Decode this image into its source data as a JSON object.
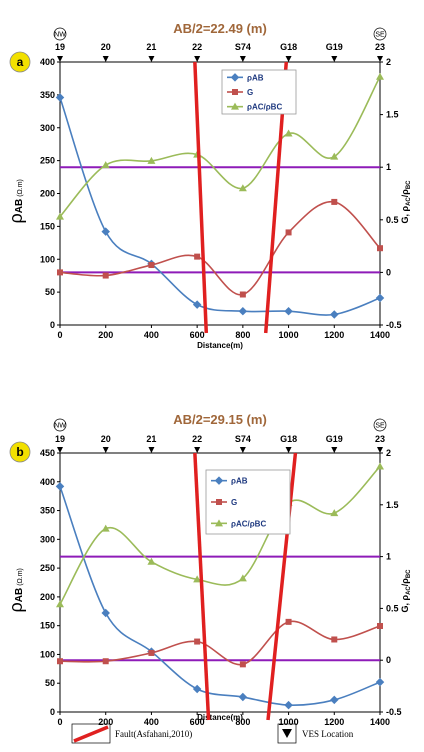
{
  "legend_bottom": {
    "fault": "Fault(Asfahani,2010)",
    "ves": "VES Location"
  },
  "colors": {
    "pab": "#4a7fbf",
    "g": "#c0504d",
    "prat": "#9bbb59",
    "fault": "#e02020",
    "hline": "#8e1bb8",
    "title": "#a0673a",
    "panel": "#f2e000"
  },
  "chart_data": [
    {
      "type": "line",
      "panel": "a",
      "title": "AB/2=22.49 (m)",
      "xlabel": "Distance(m)",
      "ylabel": "ρ",
      "ylabel_sub": "AB",
      "ylabel_unit": "(Ω.m)",
      "y2label": "G, ρAC/ρBC",
      "y2label_parts": [
        "G, ρ",
        "AC",
        "/ρ",
        "BC"
      ],
      "x": [
        0,
        200,
        400,
        600,
        800,
        1000,
        1200,
        1400
      ],
      "xlim": [
        0,
        1400
      ],
      "ylim": [
        0,
        400
      ],
      "yticks": [
        0,
        50,
        100,
        150,
        200,
        250,
        300,
        350,
        400
      ],
      "y2lim": [
        -0.5,
        2
      ],
      "y2ticks": [
        "-0.5",
        "0",
        "0.5",
        "1",
        "1.5",
        "2"
      ],
      "ves_labels": [
        "19",
        "20",
        "21",
        "22",
        "S74",
        "G18",
        "G19",
        "23"
      ],
      "dir_left": "NW",
      "dir_right": "SE",
      "legend": [
        "ρAB",
        "G",
        "ρAC/ρBC"
      ],
      "series": [
        {
          "name": "ρAB",
          "axis": "left",
          "values": [
            346,
            142,
            93,
            31,
            21,
            21,
            16,
            41
          ]
        },
        {
          "name": "G",
          "axis": "right",
          "values": [
            0.0,
            -0.03,
            0.07,
            0.15,
            -0.21,
            0.38,
            0.67,
            0.23
          ]
        },
        {
          "name": "ρAC/ρBC",
          "axis": "right",
          "values": [
            0.53,
            1.02,
            1.06,
            1.12,
            0.8,
            1.32,
            1.1,
            1.86
          ]
        }
      ],
      "hlines_right": [
        1,
        0
      ],
      "faults": [
        {
          "top": 590,
          "bottom": 640
        },
        {
          "top": 990,
          "bottom": 900
        }
      ]
    },
    {
      "type": "line",
      "panel": "b",
      "title": "AB/2=29.15 (m)",
      "xlabel": "Distance(m)",
      "ylabel": "ρ",
      "ylabel_sub": "AB",
      "ylabel_unit": "(Ω.m)",
      "y2label": "G, ρAC/ρBC",
      "y2label_parts": [
        "G, ρ",
        "AC",
        "/ρ",
        "BC"
      ],
      "x": [
        0,
        200,
        400,
        600,
        800,
        1000,
        1200,
        1400
      ],
      "xlim": [
        0,
        1400
      ],
      "ylim": [
        0,
        450
      ],
      "yticks": [
        0,
        50,
        100,
        150,
        200,
        250,
        300,
        350,
        400,
        450
      ],
      "y2lim": [
        -0.5,
        2
      ],
      "y2ticks": [
        "-0.5",
        "0",
        "0.5",
        "1",
        "1.5",
        "2"
      ],
      "ves_labels": [
        "19",
        "20",
        "21",
        "22",
        "S74",
        "G18",
        "G19",
        "23"
      ],
      "dir_left": "NW",
      "dir_right": "SE",
      "legend": [
        "ρAB",
        "G",
        "ρAC/ρBC"
      ],
      "series": [
        {
          "name": "ρAB",
          "axis": "left",
          "values": [
            392,
            172,
            105,
            40,
            26,
            12,
            21,
            52
          ]
        },
        {
          "name": "G",
          "axis": "right",
          "values": [
            -0.01,
            -0.01,
            0.07,
            0.18,
            -0.04,
            0.37,
            0.2,
            0.33
          ]
        },
        {
          "name": "ρAC/ρBC",
          "axis": "right",
          "values": [
            0.54,
            1.27,
            0.95,
            0.78,
            0.79,
            1.52,
            1.42,
            1.87
          ]
        }
      ],
      "hlines_right": [
        1,
        0
      ],
      "faults": [
        {
          "top": 590,
          "bottom": 650
        },
        {
          "top": 1030,
          "bottom": 910
        }
      ]
    }
  ]
}
